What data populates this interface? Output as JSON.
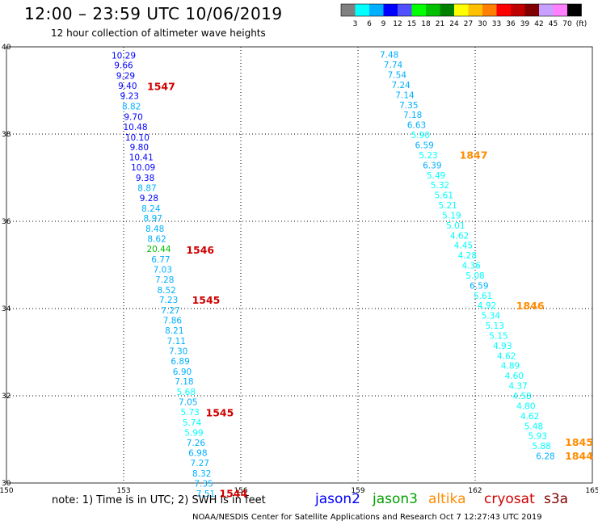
{
  "header": {
    "title": "12:00 – 23:59 UTC 10/06/2019",
    "subtitle": "12 hour collection of altimeter wave heights"
  },
  "color_scale": {
    "colors": [
      "#808080",
      "#00ffff",
      "#00b0ff",
      "#0000ff",
      "#5050ff",
      "#00ff00",
      "#00c000",
      "#008000",
      "#ffff00",
      "#ffc000",
      "#ff8000",
      "#ff0000",
      "#c00000",
      "#800000",
      "#c8a0ff",
      "#ff80ff",
      "#000000"
    ],
    "labels": [
      "3",
      "6",
      "9",
      "12",
      "15",
      "18",
      "21",
      "24",
      "27",
      "30",
      "33",
      "36",
      "39",
      "42",
      "45",
      "70",
      "(ft)"
    ]
  },
  "chart_data": {
    "type": "scatter",
    "xlim": [
      150,
      165
    ],
    "ylim": [
      30,
      40
    ],
    "x_ticks": [
      150,
      153,
      156,
      159,
      162,
      165
    ],
    "y_ticks": [
      30,
      32,
      34,
      36,
      38,
      40
    ],
    "grid": true,
    "swh_labels": [
      {
        "x": 153.0,
        "y": 39.81,
        "v": "10.29",
        "c": "#0000ff"
      },
      {
        "x": 153.0,
        "y": 39.58,
        "v": "9.66",
        "c": "#0000ff"
      },
      {
        "x": 153.05,
        "y": 39.34,
        "v": "9.29",
        "c": "#0000ff"
      },
      {
        "x": 153.1,
        "y": 39.11,
        "v": "9.40",
        "c": "#0000ff"
      },
      {
        "x": 153.15,
        "y": 38.88,
        "v": "9.23",
        "c": "#0000ff"
      },
      {
        "x": 153.2,
        "y": 38.64,
        "v": "8.82",
        "c": "#00b0ff"
      },
      {
        "x": 153.25,
        "y": 38.4,
        "v": "9.70",
        "c": "#0000ff"
      },
      {
        "x": 153.3,
        "y": 38.17,
        "v": "10.48",
        "c": "#0000ff"
      },
      {
        "x": 153.35,
        "y": 37.93,
        "v": "10.10",
        "c": "#0000ff"
      },
      {
        "x": 153.4,
        "y": 37.7,
        "v": "9.80",
        "c": "#0000ff"
      },
      {
        "x": 153.45,
        "y": 37.47,
        "v": "10.41",
        "c": "#0000ff"
      },
      {
        "x": 153.5,
        "y": 37.24,
        "v": "10.09",
        "c": "#0000ff"
      },
      {
        "x": 153.55,
        "y": 37.0,
        "v": "9.38",
        "c": "#0000ff"
      },
      {
        "x": 153.6,
        "y": 36.77,
        "v": "8.87",
        "c": "#00b0ff"
      },
      {
        "x": 153.65,
        "y": 36.54,
        "v": "9.28",
        "c": "#0000ff"
      },
      {
        "x": 153.7,
        "y": 36.3,
        "v": "8.24",
        "c": "#00b0ff"
      },
      {
        "x": 153.75,
        "y": 36.07,
        "v": "8.97",
        "c": "#00b0ff"
      },
      {
        "x": 153.8,
        "y": 35.83,
        "v": "8.48",
        "c": "#00b0ff"
      },
      {
        "x": 153.85,
        "y": 35.6,
        "v": "8.62",
        "c": "#00b0ff"
      },
      {
        "x": 153.9,
        "y": 35.37,
        "v": "20.44",
        "c": "#00c000"
      },
      {
        "x": 153.95,
        "y": 35.13,
        "v": "6.77",
        "c": "#00b0ff"
      },
      {
        "x": 154.0,
        "y": 34.9,
        "v": "7.03",
        "c": "#00b0ff"
      },
      {
        "x": 154.05,
        "y": 34.67,
        "v": "7.28",
        "c": "#00b0ff"
      },
      {
        "x": 154.1,
        "y": 34.43,
        "v": "8.52",
        "c": "#00b0ff"
      },
      {
        "x": 154.15,
        "y": 34.2,
        "v": "7.23",
        "c": "#00b0ff"
      },
      {
        "x": 154.2,
        "y": 33.96,
        "v": "7.27",
        "c": "#00b0ff"
      },
      {
        "x": 154.25,
        "y": 33.73,
        "v": "7.86",
        "c": "#00b0ff"
      },
      {
        "x": 154.3,
        "y": 33.5,
        "v": "8.21",
        "c": "#00b0ff"
      },
      {
        "x": 154.35,
        "y": 33.26,
        "v": "7.11",
        "c": "#00b0ff"
      },
      {
        "x": 154.4,
        "y": 33.03,
        "v": "7.30",
        "c": "#00b0ff"
      },
      {
        "x": 154.45,
        "y": 32.8,
        "v": "6.89",
        "c": "#00b0ff"
      },
      {
        "x": 154.5,
        "y": 32.56,
        "v": "6.90",
        "c": "#00b0ff"
      },
      {
        "x": 154.55,
        "y": 32.33,
        "v": "7.18",
        "c": "#00b0ff"
      },
      {
        "x": 154.6,
        "y": 32.09,
        "v": "5.68",
        "c": "#00ffff"
      },
      {
        "x": 154.65,
        "y": 31.86,
        "v": "7.05",
        "c": "#00b0ff"
      },
      {
        "x": 154.7,
        "y": 31.63,
        "v": "5.73",
        "c": "#00ffff"
      },
      {
        "x": 154.75,
        "y": 31.39,
        "v": "5.74",
        "c": "#00ffff"
      },
      {
        "x": 154.8,
        "y": 31.16,
        "v": "5.99",
        "c": "#00ffff"
      },
      {
        "x": 154.85,
        "y": 30.93,
        "v": "7.26",
        "c": "#00b0ff"
      },
      {
        "x": 154.9,
        "y": 30.69,
        "v": "6.98",
        "c": "#00b0ff"
      },
      {
        "x": 154.95,
        "y": 30.46,
        "v": "7.27",
        "c": "#00b0ff"
      },
      {
        "x": 155.0,
        "y": 30.22,
        "v": "8.32",
        "c": "#00b0ff"
      },
      {
        "x": 155.05,
        "y": 29.99,
        "v": "7.35",
        "c": "#00b0ff"
      },
      {
        "x": 155.1,
        "y": 29.76,
        "v": "7.51",
        "c": "#00b0ff"
      },
      {
        "x": 159.8,
        "y": 39.82,
        "v": "7.48",
        "c": "#00b0ff"
      },
      {
        "x": 159.9,
        "y": 39.59,
        "v": "7.74",
        "c": "#00b0ff"
      },
      {
        "x": 160.0,
        "y": 39.36,
        "v": "7.54",
        "c": "#00b0ff"
      },
      {
        "x": 160.1,
        "y": 39.13,
        "v": "7.24",
        "c": "#00b0ff"
      },
      {
        "x": 160.2,
        "y": 38.9,
        "v": "7.14",
        "c": "#00b0ff"
      },
      {
        "x": 160.3,
        "y": 38.67,
        "v": "7.35",
        "c": "#00b0ff"
      },
      {
        "x": 160.4,
        "y": 38.44,
        "v": "7.18",
        "c": "#00b0ff"
      },
      {
        "x": 160.5,
        "y": 38.21,
        "v": "6.63",
        "c": "#00b0ff"
      },
      {
        "x": 160.6,
        "y": 37.98,
        "v": "5.90",
        "c": "#00ffff"
      },
      {
        "x": 160.7,
        "y": 37.75,
        "v": "6.59",
        "c": "#00b0ff"
      },
      {
        "x": 160.8,
        "y": 37.52,
        "v": "5.23",
        "c": "#00ffff"
      },
      {
        "x": 160.9,
        "y": 37.29,
        "v": "6.39",
        "c": "#00b0ff"
      },
      {
        "x": 161.0,
        "y": 37.06,
        "v": "5.49",
        "c": "#00ffff"
      },
      {
        "x": 161.1,
        "y": 36.83,
        "v": "5.32",
        "c": "#00ffff"
      },
      {
        "x": 161.2,
        "y": 36.6,
        "v": "5.61",
        "c": "#00ffff"
      },
      {
        "x": 161.3,
        "y": 36.37,
        "v": "5.21",
        "c": "#00ffff"
      },
      {
        "x": 161.4,
        "y": 36.14,
        "v": "5.19",
        "c": "#00ffff"
      },
      {
        "x": 161.5,
        "y": 35.91,
        "v": "5.01",
        "c": "#00ffff"
      },
      {
        "x": 161.6,
        "y": 35.68,
        "v": "4.62",
        "c": "#00ffff"
      },
      {
        "x": 161.7,
        "y": 35.45,
        "v": "4.45",
        "c": "#00ffff"
      },
      {
        "x": 161.8,
        "y": 35.22,
        "v": "4.28",
        "c": "#00ffff"
      },
      {
        "x": 161.9,
        "y": 34.99,
        "v": "4.36",
        "c": "#00ffff"
      },
      {
        "x": 162.0,
        "y": 34.76,
        "v": "5.08",
        "c": "#00ffff"
      },
      {
        "x": 162.1,
        "y": 34.53,
        "v": "6.59",
        "c": "#00b0ff"
      },
      {
        "x": 162.2,
        "y": 34.3,
        "v": "5.61",
        "c": "#00ffff"
      },
      {
        "x": 162.3,
        "y": 34.07,
        "v": "4.92",
        "c": "#00ffff"
      },
      {
        "x": 162.4,
        "y": 33.84,
        "v": "5.34",
        "c": "#00ffff"
      },
      {
        "x": 162.5,
        "y": 33.61,
        "v": "5.13",
        "c": "#00ffff"
      },
      {
        "x": 162.6,
        "y": 33.38,
        "v": "5.15",
        "c": "#00ffff"
      },
      {
        "x": 162.7,
        "y": 33.15,
        "v": "4.93",
        "c": "#00ffff"
      },
      {
        "x": 162.8,
        "y": 32.92,
        "v": "4.62",
        "c": "#00ffff"
      },
      {
        "x": 162.9,
        "y": 32.69,
        "v": "4.89",
        "c": "#00ffff"
      },
      {
        "x": 163.0,
        "y": 32.46,
        "v": "4.60",
        "c": "#00ffff"
      },
      {
        "x": 163.1,
        "y": 32.23,
        "v": "4.37",
        "c": "#00ffff"
      },
      {
        "x": 163.2,
        "y": 32.0,
        "v": "4.58",
        "c": "#00ffff"
      },
      {
        "x": 163.3,
        "y": 31.77,
        "v": "4.80",
        "c": "#00ffff"
      },
      {
        "x": 163.4,
        "y": 31.54,
        "v": "4.62",
        "c": "#00ffff"
      },
      {
        "x": 163.5,
        "y": 31.31,
        "v": "5.48",
        "c": "#00ffff"
      },
      {
        "x": 163.6,
        "y": 31.08,
        "v": "5.93",
        "c": "#00ffff"
      },
      {
        "x": 163.7,
        "y": 30.85,
        "v": "5.88",
        "c": "#00ffff"
      },
      {
        "x": 163.8,
        "y": 30.62,
        "v": "6.28",
        "c": "#00b0ff"
      }
    ],
    "time_labels": [
      {
        "x": 153.6,
        "y": 39.1,
        "v": "1547",
        "c": "#d00000"
      },
      {
        "x": 154.6,
        "y": 35.35,
        "v": "1546",
        "c": "#d00000"
      },
      {
        "x": 154.75,
        "y": 34.2,
        "v": "1545",
        "c": "#d00000"
      },
      {
        "x": 155.1,
        "y": 31.62,
        "v": "1545",
        "c": "#d00000"
      },
      {
        "x": 155.45,
        "y": 29.77,
        "v": "1544",
        "c": "#d00000"
      },
      {
        "x": 161.6,
        "y": 37.53,
        "v": "1847",
        "c": "#ff8c00"
      },
      {
        "x": 163.05,
        "y": 34.07,
        "v": "1846",
        "c": "#ff8c00"
      },
      {
        "x": 164.3,
        "y": 30.94,
        "v": "1845",
        "c": "#ff8c00"
      },
      {
        "x": 164.3,
        "y": 30.63,
        "v": "1844",
        "c": "#ff8c00"
      }
    ]
  },
  "note": "note: 1) Time is in UTC; 2) SWH is in feet",
  "legend": [
    {
      "name": "jason2",
      "color": "#0000ff"
    },
    {
      "name": "jason3",
      "color": "#00a000"
    },
    {
      "name": "altika",
      "color": "#ff8c00"
    },
    {
      "name": "cryosat",
      "color": "#d00000"
    },
    {
      "name": "s3a",
      "color": "#800000"
    }
  ],
  "credit": "NOAA/NESDIS Center for Satellite Applications and Research   Oct  7 12:27:43 UTC 2019"
}
